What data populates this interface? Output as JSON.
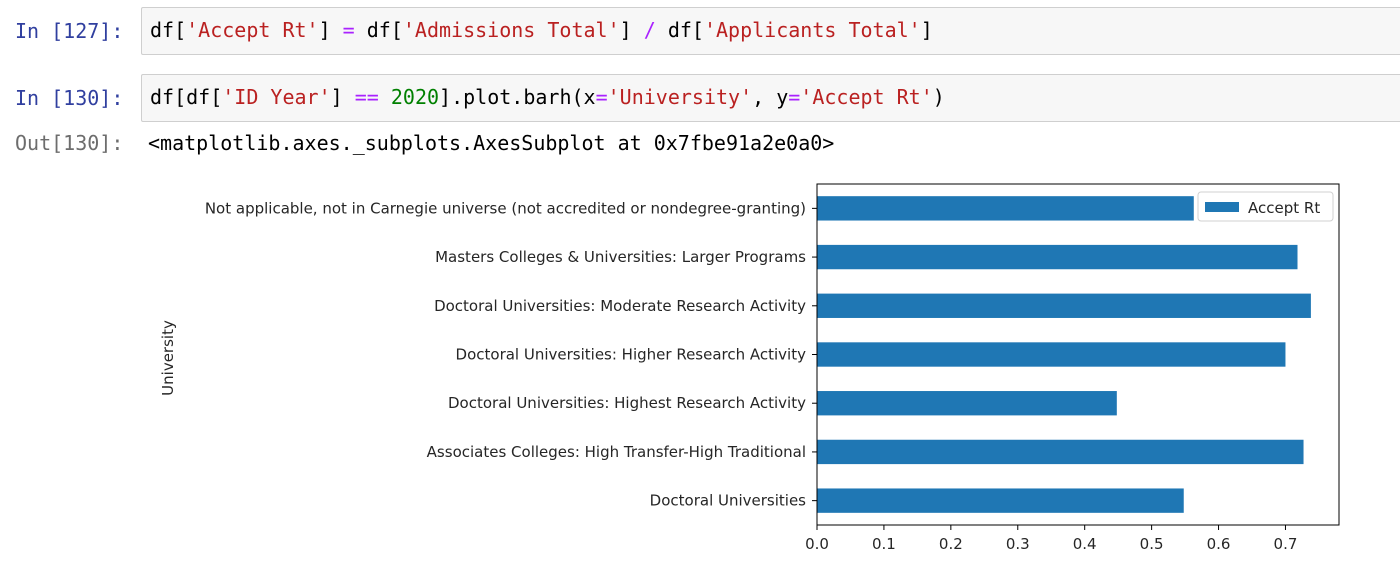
{
  "cells": [
    {
      "prompt": "In [127]:",
      "code": [
        {
          "t": "df[",
          "c": ""
        },
        {
          "t": "'Accept Rt'",
          "c": "s"
        },
        {
          "t": "] ",
          "c": ""
        },
        {
          "t": "=",
          "c": "o"
        },
        {
          "t": " df[",
          "c": ""
        },
        {
          "t": "'Admissions Total'",
          "c": "s"
        },
        {
          "t": "] ",
          "c": ""
        },
        {
          "t": "/",
          "c": "o"
        },
        {
          "t": " df[",
          "c": ""
        },
        {
          "t": "'Applicants Total'",
          "c": "s"
        },
        {
          "t": "]",
          "c": ""
        }
      ]
    },
    {
      "prompt": "In [130]:",
      "code": [
        {
          "t": "df[df[",
          "c": ""
        },
        {
          "t": "'ID Year'",
          "c": "s"
        },
        {
          "t": "] ",
          "c": ""
        },
        {
          "t": "==",
          "c": "o"
        },
        {
          "t": " ",
          "c": ""
        },
        {
          "t": "2020",
          "c": "n"
        },
        {
          "t": "].plot.barh(x",
          "c": ""
        },
        {
          "t": "=",
          "c": "o"
        },
        {
          "t": "'University'",
          "c": "s"
        },
        {
          "t": ", y",
          "c": ""
        },
        {
          "t": "=",
          "c": "o"
        },
        {
          "t": "'Accept Rt'",
          "c": "s"
        },
        {
          "t": ")",
          "c": ""
        }
      ]
    }
  ],
  "output": {
    "prompt": "Out[130]:",
    "text": "<matplotlib.axes._subplots.AxesSubplot at 0x7fbe91a2e0a0>"
  },
  "chart_data": {
    "type": "bar",
    "orientation": "horizontal",
    "categories": [
      "Not applicable, not in Carnegie universe (not accredited or nondegree-granting)",
      "Masters Colleges & Universities: Larger Programs",
      "Doctoral Universities: Moderate Research Activity",
      "Doctoral Universities: Higher Research Activity",
      "Doctoral Universities: Highest Research Activity",
      "Associates Colleges: High Transfer-High Traditional",
      "Doctoral Universities"
    ],
    "series": [
      {
        "name": "Accept Rt",
        "values": [
          0.563,
          0.718,
          0.738,
          0.7,
          0.448,
          0.727,
          0.548
        ]
      }
    ],
    "xlim": [
      0,
      0.78
    ],
    "xticks": [
      "0.0",
      "0.1",
      "0.2",
      "0.3",
      "0.4",
      "0.5",
      "0.6",
      "0.7"
    ],
    "ylabel": "University",
    "xlabel": "",
    "legend": "upper right",
    "bar_color": "#1f77b4",
    "grid": false
  }
}
